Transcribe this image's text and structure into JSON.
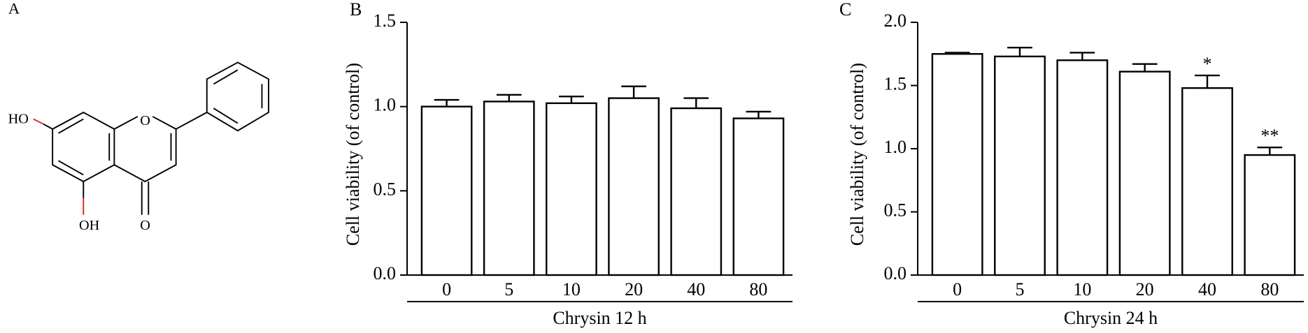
{
  "structure": {
    "panel": "A",
    "labels": [
      "HO",
      "OH",
      "O",
      "O"
    ]
  },
  "chart_data": [
    {
      "type": "bar",
      "panel": "B",
      "ylabel": "Cell viability (of control)",
      "xlabel": "Chrysin 12 h",
      "categories": [
        "0",
        "5",
        "10",
        "20",
        "40",
        "80"
      ],
      "values": [
        1.0,
        1.03,
        1.02,
        1.05,
        0.99,
        0.93
      ],
      "errors": [
        0.04,
        0.04,
        0.04,
        0.07,
        0.06,
        0.04
      ],
      "color": "#ffffff",
      "edgecolor": "#000000",
      "ylim": [
        0,
        1.5
      ],
      "yticks": [
        {
          "value": 0,
          "label": "0.0"
        },
        0.5,
        {
          "value": 1,
          "label": "1.0"
        },
        1.5
      ],
      "grid": false
    },
    {
      "type": "bar",
      "panel": "C",
      "ylabel": "Cell viability (of control)",
      "xlabel": "Chrysin 24 h",
      "categories": [
        "0",
        "5",
        "10",
        "20",
        "40",
        "80"
      ],
      "values": [
        1.75,
        1.73,
        1.7,
        1.61,
        1.48,
        0.95
      ],
      "errors": [
        0.01,
        0.07,
        0.06,
        0.06,
        0.1,
        0.06
      ],
      "annotations": [
        null,
        null,
        null,
        null,
        "*",
        "**"
      ],
      "color": "#ffffff",
      "edgecolor": "#000000",
      "ylim": [
        0,
        2
      ],
      "yticks": [
        {
          "value": 0,
          "label": "0.0"
        },
        0.5,
        {
          "value": 1,
          "label": "1.0"
        },
        1.5,
        {
          "value": 2,
          "label": "2.0"
        }
      ],
      "grid": false
    }
  ]
}
